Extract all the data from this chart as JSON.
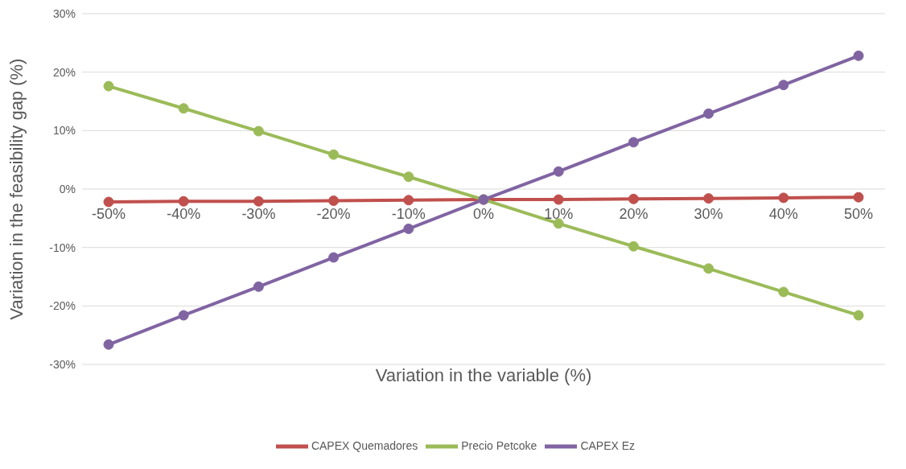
{
  "chart_data": {
    "type": "line",
    "xlabel": "Variation in the variable (%)",
    "ylabel": "Variation in the feasibility gap (%)",
    "categories": [
      "-50%",
      "-40%",
      "-30%",
      "-20%",
      "-10%",
      "0%",
      "10%",
      "20%",
      "30%",
      "40%",
      "50%"
    ],
    "series": [
      {
        "name": "CAPEX Quemadores",
        "color": "#c0504d",
        "values": [
          -2.2,
          -2.1,
          -2.1,
          -2.0,
          -1.9,
          -1.8,
          -1.8,
          -1.7,
          -1.6,
          -1.5,
          -1.4
        ]
      },
      {
        "name": "Precio Petcoke",
        "color": "#9bbb59",
        "values": [
          17.6,
          13.8,
          9.9,
          5.9,
          2.1,
          -1.8,
          -5.9,
          -9.8,
          -13.6,
          -17.6,
          -21.6
        ]
      },
      {
        "name": "CAPEX Ez",
        "color": "#8064a2",
        "values": [
          -26.6,
          -21.6,
          -16.7,
          -11.7,
          -6.8,
          -1.8,
          3.0,
          8.0,
          12.9,
          17.8,
          22.8
        ]
      }
    ],
    "ylim": [
      -30,
      30
    ],
    "yticks": [
      {
        "value": -30,
        "label": "-30%"
      },
      {
        "value": -20,
        "label": "-20%"
      },
      {
        "value": -10,
        "label": "-10%"
      },
      {
        "value": 0,
        "label": "0%"
      },
      {
        "value": 10,
        "label": "10%"
      },
      {
        "value": 20,
        "label": "20%"
      },
      {
        "value": 30,
        "label": "30%"
      }
    ],
    "grid": "y",
    "legend": "bottom",
    "marker": "circle",
    "line_style": "solid"
  }
}
